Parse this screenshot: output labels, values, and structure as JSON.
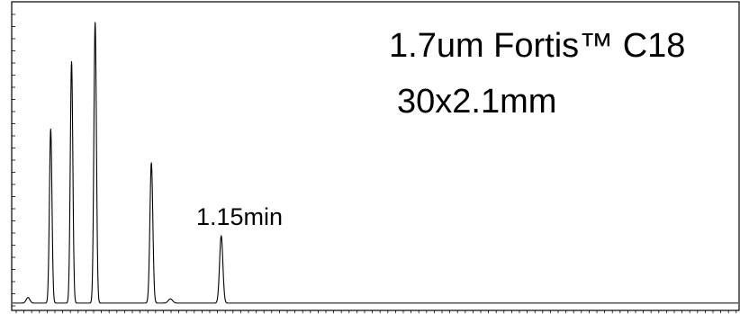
{
  "chart_data": {
    "type": "line",
    "title": "",
    "xlabel": "",
    "ylabel": "",
    "xlim": [
      0,
      4.0
    ],
    "ylim": [
      0,
      100
    ],
    "grid": false,
    "legend": "none",
    "series_color": "#000000",
    "baseline": 1.0,
    "peaks": [
      {
        "t": 0.21,
        "height": 62,
        "width": 0.007
      },
      {
        "t": 0.325,
        "height": 86,
        "width": 0.007
      },
      {
        "t": 0.455,
        "height": 100,
        "width": 0.007
      },
      {
        "t": 0.765,
        "height": 50,
        "width": 0.008
      },
      {
        "t": 1.15,
        "height": 24,
        "width": 0.009
      }
    ],
    "minor_peaks": [
      {
        "t": 0.085,
        "height": 2,
        "width": 0.01
      },
      {
        "t": 0.87,
        "height": 1.5,
        "width": 0.012
      }
    ],
    "annotations": [
      {
        "text": "1.7um Fortis™ C18",
        "anchor_t": 3.05,
        "anchor_v": 90
      },
      {
        "text": "30x2.1mm",
        "anchor_t": 3.05,
        "anchor_v": 72
      },
      {
        "text": "1.15min",
        "anchor_t": 1.15,
        "anchor_v": 30
      }
    ]
  }
}
